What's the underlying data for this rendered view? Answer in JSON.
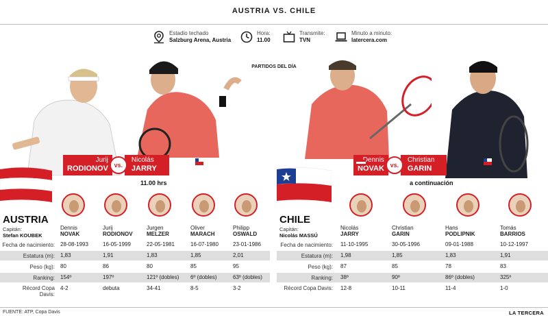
{
  "title": "AUSTRIA VS. CHILE",
  "info": {
    "venue_label": "Estadio techado",
    "venue_value": "Salzburg Arena, Austria",
    "time_label": "Hora:",
    "time_value": "11.00",
    "tv_label": "Transmite:",
    "tv_value": "TVN",
    "live_label": "Minuto a minuto:",
    "live_value": "latercera.com"
  },
  "section_label": "PARTIDOS DEL DÍA",
  "match1": {
    "p1_first": "Jurij",
    "p1_last": "RODIONOV",
    "vs": "vs.",
    "p2_first": "Nicolás",
    "p2_last": "JARRY",
    "time": "11.00 hrs"
  },
  "match2": {
    "p1_first": "Dennis",
    "p1_last": "NOVAK",
    "vs": "vs.",
    "p2_first": "Christian",
    "p2_last": "GARIN",
    "time": "a continuación"
  },
  "row_labels": {
    "birth": "Fecha de nacimiento:",
    "height": "Estatura (m):",
    "weight": "Peso (kg):",
    "ranking": "Ranking:",
    "davis": "Récord Copa Davis:"
  },
  "austria": {
    "country": "AUSTRIA",
    "captain_label": "Capitán:",
    "captain_name": "Stefan KOUBEK",
    "players": [
      {
        "first": "Dennis",
        "last": "NOVAK",
        "birth": "28-08-1993",
        "height": "1,83",
        "weight": "80",
        "ranking": "154º",
        "davis": "4-2"
      },
      {
        "first": "Jurij",
        "last": "RODIONOV",
        "birth": "16-05-1999",
        "height": "1,91",
        "weight": "86",
        "ranking": "197º",
        "davis": "debuta"
      },
      {
        "first": "Jurgen",
        "last": "MELZER",
        "birth": "22-05-1981",
        "height": "1,83",
        "weight": "80",
        "ranking": "121º (dobles)",
        "davis": "34-41"
      },
      {
        "first": "Oliver",
        "last": "MARACH",
        "birth": "16-07-1980",
        "height": "1,85",
        "weight": "85",
        "ranking": "6º (dobles)",
        "davis": "8-5"
      },
      {
        "first": "Philipp",
        "last": "OSWALD",
        "birth": "23-01-1986",
        "height": "2,01",
        "weight": "95",
        "ranking": "63º (dobles)",
        "davis": "3-2"
      }
    ]
  },
  "chile": {
    "country": "CHILE",
    "captain_label": "Capitán:",
    "captain_name": "Nicolás MASSÚ",
    "players": [
      {
        "first": "Nicolás",
        "last": "JARRY",
        "birth": "11-10-1995",
        "height": "1,98",
        "weight": "87",
        "ranking": "38º",
        "davis": "12-8"
      },
      {
        "first": "Christian",
        "last": "GARIN",
        "birth": "30-05-1996",
        "height": "1,85",
        "weight": "85",
        "ranking": "90º",
        "davis": "10-11"
      },
      {
        "first": "Hans",
        "last": "PODLIPNIK",
        "birth": "09-01-1988",
        "height": "1,83",
        "weight": "78",
        "ranking": "86º (dobles)",
        "davis": "11-4"
      },
      {
        "first": "Tomás",
        "last": "BARRIOS",
        "birth": "10-12-1997",
        "height": "1,91",
        "weight": "83",
        "ranking": "325º",
        "davis": "1-0"
      }
    ]
  },
  "footer": {
    "source": "FUENTE: ATP, Copa Davis",
    "brand": "LA TERCERA"
  },
  "colors": {
    "accent": "#d51f26",
    "band": "#dedede",
    "chile_blue": "#1c3f94"
  }
}
